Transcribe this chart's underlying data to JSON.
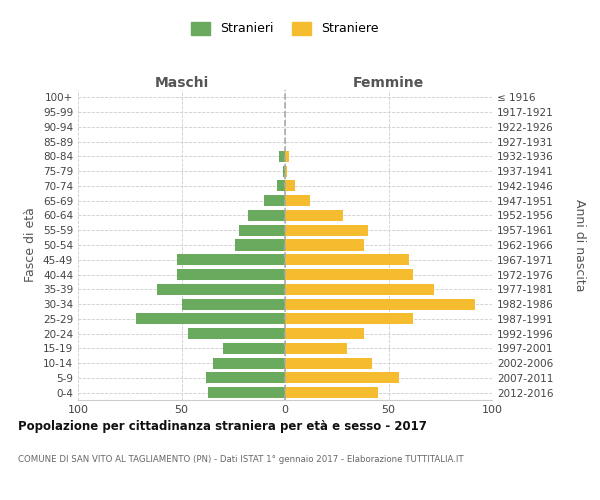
{
  "age_groups": [
    "100+",
    "95-99",
    "90-94",
    "85-89",
    "80-84",
    "75-79",
    "70-74",
    "65-69",
    "60-64",
    "55-59",
    "50-54",
    "45-49",
    "40-44",
    "35-39",
    "30-34",
    "25-29",
    "20-24",
    "15-19",
    "10-14",
    "5-9",
    "0-4"
  ],
  "birth_years": [
    "≤ 1916",
    "1917-1921",
    "1922-1926",
    "1927-1931",
    "1932-1936",
    "1937-1941",
    "1942-1946",
    "1947-1951",
    "1952-1956",
    "1957-1961",
    "1962-1966",
    "1967-1971",
    "1972-1976",
    "1977-1981",
    "1982-1986",
    "1987-1991",
    "1992-1996",
    "1997-2001",
    "2002-2006",
    "2007-2011",
    "2012-2016"
  ],
  "maschi": [
    0,
    0,
    0,
    0,
    3,
    1,
    4,
    10,
    18,
    22,
    24,
    52,
    52,
    62,
    50,
    72,
    47,
    30,
    35,
    38,
    37
  ],
  "femmine": [
    0,
    0,
    0,
    0,
    2,
    1,
    5,
    12,
    28,
    40,
    38,
    60,
    62,
    72,
    92,
    62,
    38,
    30,
    42,
    55,
    45
  ],
  "color_maschi": "#6aaa5e",
  "color_femmine": "#f5bc2f",
  "title_main": "Popolazione per cittadinanza straniera per età e sesso - 2017",
  "title_sub": "COMUNE DI SAN VITO AL TAGLIAMENTO (PN) - Dati ISTAT 1° gennaio 2017 - Elaborazione TUTTITALIA.IT",
  "header_maschi": "Maschi",
  "header_femmine": "Femmine",
  "ylabel_left": "Fasce di età",
  "ylabel_right": "Anni di nascita",
  "xlim": 100,
  "legend_maschi": "Stranieri",
  "legend_femmine": "Straniere",
  "bg_color": "#ffffff",
  "grid_color": "#cccccc"
}
